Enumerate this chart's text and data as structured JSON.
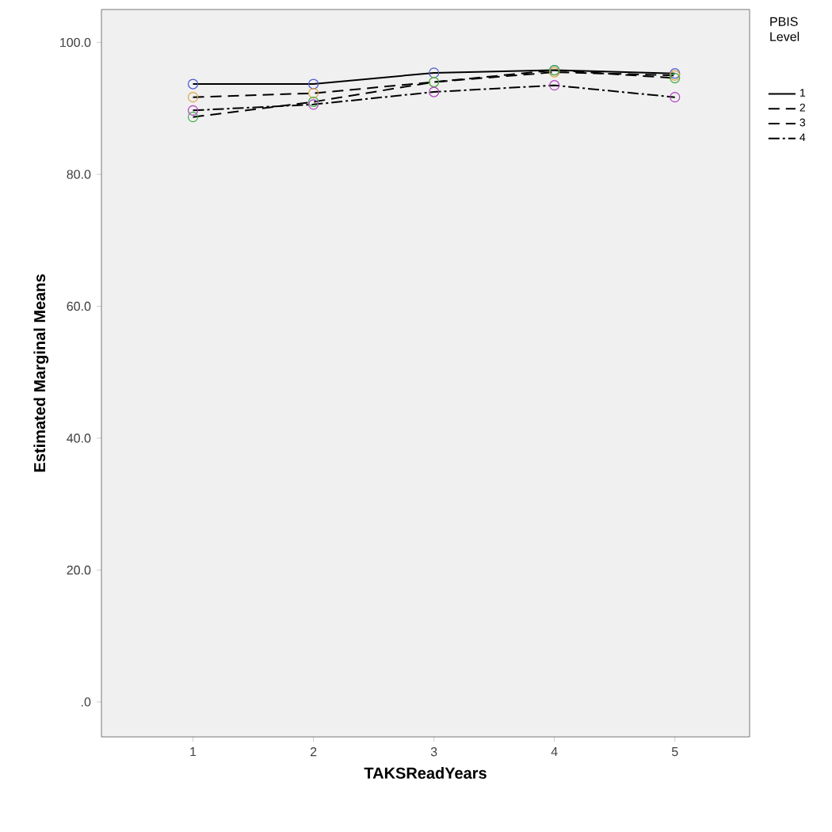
{
  "chart_data": {
    "type": "line",
    "xlabel": "TAKSReadYears",
    "ylabel": "Estimated Marginal Means",
    "legend_title": "PBIS Level",
    "legend": "right",
    "marker": "circle",
    "grid": false,
    "categories": [
      "1",
      "2",
      "3",
      "4",
      "5"
    ],
    "ylim": [
      -5.3,
      105
    ],
    "yticks": [
      {
        "value": 0,
        "label": ".0"
      },
      {
        "value": 20,
        "label": "20.0"
      },
      {
        "value": 40,
        "label": "40.0"
      },
      {
        "value": 60,
        "label": "60.0"
      },
      {
        "value": 80,
        "label": "80.0"
      },
      {
        "value": 100,
        "label": "100.0"
      }
    ],
    "series": [
      {
        "name": "1",
        "color": "#4b5bd0",
        "line_style": "solid",
        "values": [
          93.7,
          93.7,
          95.4,
          95.8,
          95.3
        ]
      },
      {
        "name": "2",
        "color": "#d9a441",
        "line_style": "dashed",
        "values": [
          91.7,
          92.3,
          94.0,
          95.5,
          95.0
        ]
      },
      {
        "name": "3",
        "color": "#3fb04a",
        "line_style": "dashed",
        "values": [
          88.7,
          91.0,
          94.0,
          95.8,
          94.6
        ]
      },
      {
        "name": "4",
        "color": "#b040c0",
        "line_style": "dashdotted",
        "values": [
          89.7,
          90.6,
          92.5,
          93.5,
          91.7
        ]
      }
    ]
  }
}
